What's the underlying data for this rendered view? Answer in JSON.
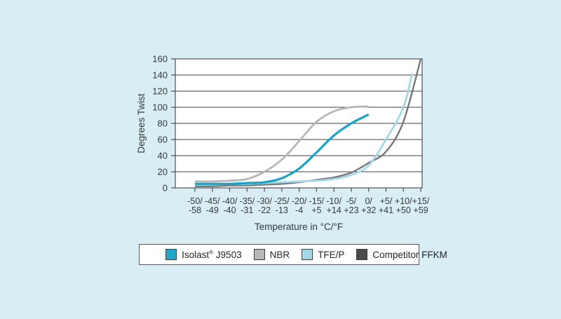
{
  "background_color": "#d8edf4",
  "plot_background_color": "#ffffff",
  "grid_color": "#3f4244",
  "text_color": "#36383a",
  "chart_data": {
    "type": "line",
    "title": "",
    "ylabel": "Degrees Twist",
    "xlabel": "Temperature in °C/°F",
    "ylim": [
      0,
      160
    ],
    "yticks": [
      0,
      20,
      40,
      60,
      80,
      100,
      120,
      140,
      160
    ],
    "grid": "horizontal",
    "legend_position": "bottom",
    "categories": [
      {
        "c": "-50/",
        "f": "-58"
      },
      {
        "c": "-45/",
        "f": "-49"
      },
      {
        "c": "-40/",
        "f": "-40"
      },
      {
        "c": "-35/",
        "f": "-31"
      },
      {
        "c": "-30/",
        "f": "-22"
      },
      {
        "c": "-25/",
        "f": "-13"
      },
      {
        "c": "-20/",
        "f": "-4"
      },
      {
        "c": "-15/",
        "f": "+5"
      },
      {
        "c": "-10/",
        "f": "+14"
      },
      {
        "c": "-5/",
        "f": "+23"
      },
      {
        "c": "0/",
        "f": "+32"
      },
      {
        "c": "+5/",
        "f": "+41"
      },
      {
        "c": "+10/",
        "f": "+50"
      },
      {
        "c": "+15/",
        "f": "+59"
      }
    ],
    "x_values_celsius": [
      -50,
      -45,
      -40,
      -35,
      -30,
      -25,
      -20,
      -15,
      -10,
      -5,
      0,
      5,
      10,
      15
    ],
    "series": [
      {
        "name": "Isolast® J9503",
        "color": "#18a4c5",
        "swatch_color": "#21a7c6",
        "points": [
          [
            -50,
            5
          ],
          [
            -45,
            5
          ],
          [
            -40,
            5
          ],
          [
            -35,
            6
          ],
          [
            -30,
            7
          ],
          [
            -25,
            12
          ],
          [
            -20,
            24
          ],
          [
            -15,
            44
          ],
          [
            -10,
            65
          ],
          [
            -5,
            80
          ],
          [
            0,
            91
          ]
        ]
      },
      {
        "name": "NBR",
        "color": "#b6b7b8",
        "swatch_color": "#b6b7b8",
        "points": [
          [
            -50,
            8
          ],
          [
            -45,
            8
          ],
          [
            -40,
            9
          ],
          [
            -35,
            11
          ],
          [
            -30,
            20
          ],
          [
            -25,
            35
          ],
          [
            -20,
            58
          ],
          [
            -15,
            82
          ],
          [
            -10,
            95
          ],
          [
            -5,
            100
          ],
          [
            0,
            101
          ]
        ]
      },
      {
        "name": "TFE/P",
        "color": "#a3d9e6",
        "swatch_color": "#a3d9e6",
        "points": [
          [
            -50,
            4
          ],
          [
            -45,
            4
          ],
          [
            -40,
            5
          ],
          [
            -35,
            5
          ],
          [
            -30,
            6
          ],
          [
            -25,
            7
          ],
          [
            -20,
            8
          ],
          [
            -15,
            9
          ],
          [
            -10,
            11
          ],
          [
            -5,
            16
          ],
          [
            0,
            28
          ],
          [
            5,
            60
          ],
          [
            10,
            100
          ],
          [
            12.5,
            142
          ]
        ]
      },
      {
        "name": "Competitor FFKM",
        "color": "#757779",
        "swatch_color": "#494a4c",
        "points": [
          [
            -50,
            2
          ],
          [
            -45,
            2
          ],
          [
            -40,
            3
          ],
          [
            -35,
            3
          ],
          [
            -30,
            4
          ],
          [
            -25,
            5
          ],
          [
            -20,
            7
          ],
          [
            -15,
            10
          ],
          [
            -10,
            13
          ],
          [
            -5,
            19
          ],
          [
            0,
            31
          ],
          [
            5,
            45
          ],
          [
            10,
            82
          ],
          [
            15,
            160
          ]
        ]
      }
    ]
  }
}
